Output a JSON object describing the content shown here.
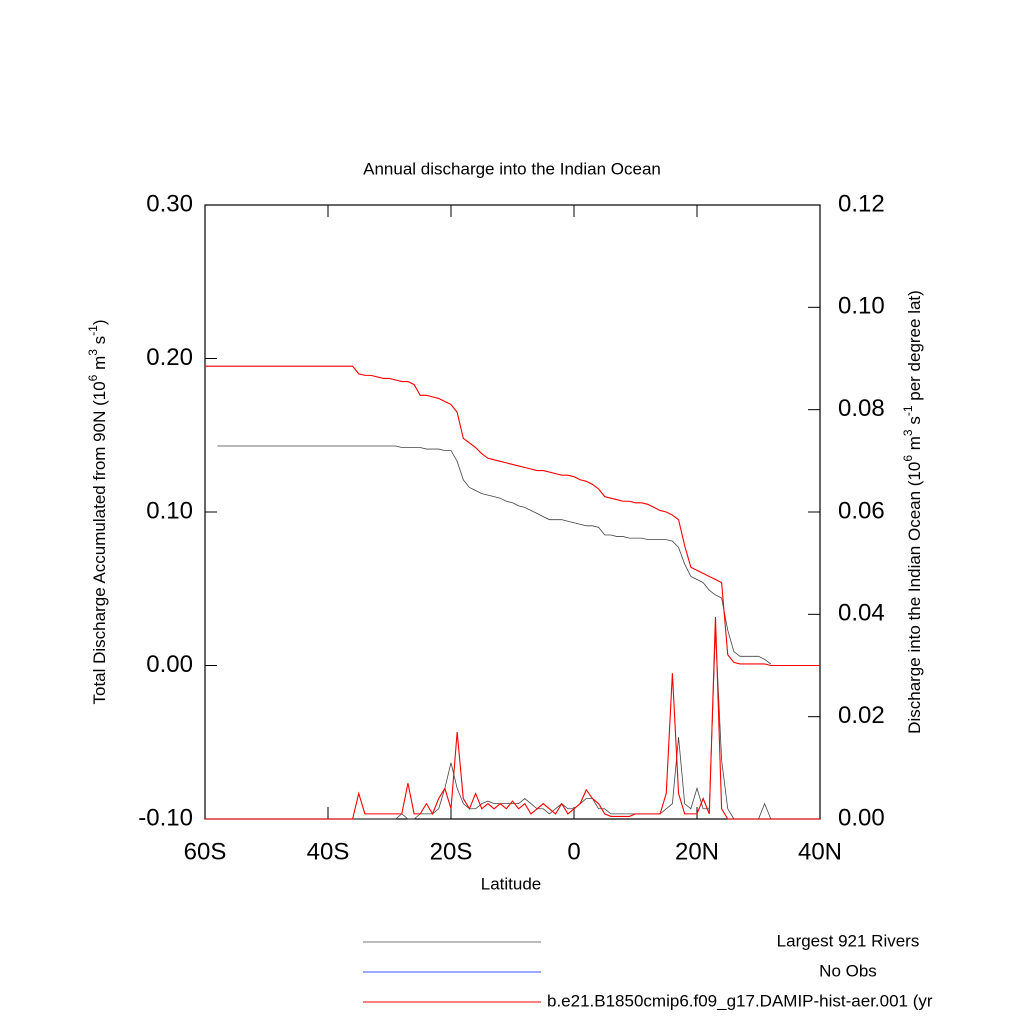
{
  "chart_data": {
    "type": "line",
    "title": "Annual discharge into the Indian Ocean",
    "xlabel": "Latitude",
    "ylabel": [
      "Total Discharge Accumulated from 90N (10",
      "6",
      " m",
      "3",
      " s",
      "-1",
      ")"
    ],
    "y2label": [
      "Discharge into the Indian Ocean (10",
      "6",
      " m",
      "3",
      " s",
      "-1",
      " per degree lat)"
    ],
    "xlim": [
      -60,
      40
    ],
    "xticks": [
      {
        "value": -60,
        "label": "60S"
      },
      {
        "value": -40,
        "label": "40S"
      },
      {
        "value": -20,
        "label": "20S"
      },
      0,
      {
        "value": 20,
        "label": "20N"
      },
      {
        "value": 40,
        "label": "40N"
      }
    ],
    "ylim": [
      -0.1,
      0.3
    ],
    "yticks": [
      {
        "value": -0.1,
        "label": "-0.10"
      },
      {
        "value": 0,
        "label": "0.00"
      },
      {
        "value": 0.1,
        "label": "0.10"
      },
      {
        "value": 0.2,
        "label": "0.20"
      },
      {
        "value": 0.3,
        "label": "0.30"
      }
    ],
    "y2lim": [
      0,
      0.12
    ],
    "y2ticks": [
      {
        "value": 0,
        "label": "0.00"
      },
      {
        "value": 0.02,
        "label": "0.02"
      },
      {
        "value": 0.04,
        "label": "0.04"
      },
      {
        "value": 0.06,
        "label": "0.06"
      },
      {
        "value": 0.08,
        "label": "0.08"
      },
      {
        "value": 0.1,
        "label": "0.10"
      },
      {
        "value": 0.12,
        "label": "0.12"
      }
    ],
    "x": [
      -60,
      -59,
      -58,
      -57,
      -56,
      -55,
      -54,
      -53,
      -52,
      -51,
      -50,
      -49,
      -48,
      -47,
      -46,
      -45,
      -44,
      -43,
      -42,
      -41,
      -40,
      -39,
      -38,
      -37,
      -36,
      -35,
      -34,
      -33,
      -32,
      -31,
      -30,
      -29,
      -28,
      -27,
      -26,
      -25,
      -24,
      -23,
      -22,
      -21,
      -20,
      -19,
      -18,
      -17,
      -16,
      -15,
      -14,
      -13,
      -12,
      -11,
      -10,
      -9,
      -8,
      -7,
      -6,
      -5,
      -4,
      -3,
      -2,
      -1,
      0,
      1,
      2,
      3,
      4,
      5,
      6,
      7,
      8,
      9,
      10,
      11,
      12,
      13,
      14,
      15,
      16,
      17,
      18,
      19,
      20,
      21,
      22,
      23,
      24,
      25,
      26,
      27,
      28,
      29,
      30,
      31,
      32,
      33,
      34,
      35,
      36,
      37,
      38,
      39,
      40
    ],
    "series": [
      {
        "color": "#444444",
        "axis": "y",
        "values": [
          null,
          null,
          0.143,
          0.143,
          0.143,
          0.143,
          0.143,
          0.143,
          0.143,
          0.143,
          0.143,
          0.143,
          0.143,
          0.143,
          0.143,
          0.143,
          0.143,
          0.143,
          0.143,
          0.143,
          0.143,
          0.143,
          0.143,
          0.143,
          0.143,
          0.143,
          0.143,
          0.143,
          0.143,
          0.143,
          0.143,
          0.143,
          0.142,
          0.142,
          0.142,
          0.142,
          0.141,
          0.141,
          0.141,
          0.14,
          0.14,
          0.133,
          0.121,
          0.116,
          0.114,
          0.112,
          0.111,
          0.11,
          0.109,
          0.107,
          0.106,
          0.104,
          0.103,
          0.101,
          0.099,
          0.097,
          0.095,
          0.095,
          0.095,
          0.094,
          0.093,
          0.092,
          0.091,
          0.091,
          0.09,
          0.085,
          0.085,
          0.084,
          0.084,
          0.083,
          0.083,
          0.083,
          0.082,
          0.082,
          0.082,
          0.082,
          0.081,
          0.077,
          0.066,
          0.058,
          0.056,
          0.054,
          0.049,
          0.046,
          0.044,
          0.023,
          0.009,
          0.006,
          0.006,
          0.006,
          0.006,
          0.004,
          0.001,
          null,
          null,
          null,
          null,
          null,
          null,
          null,
          null
        ]
      },
      {
        "color": "#ff0000",
        "axis": "y",
        "values": [
          0.195,
          0.195,
          0.195,
          0.195,
          0.195,
          0.195,
          0.195,
          0.195,
          0.195,
          0.195,
          0.195,
          0.195,
          0.195,
          0.195,
          0.195,
          0.195,
          0.195,
          0.195,
          0.195,
          0.195,
          0.195,
          0.195,
          0.195,
          0.195,
          0.195,
          0.19,
          0.189,
          0.189,
          0.188,
          0.187,
          0.187,
          0.186,
          0.185,
          0.185,
          0.183,
          0.176,
          0.176,
          0.175,
          0.174,
          0.172,
          0.17,
          0.165,
          0.148,
          0.145,
          0.142,
          0.138,
          0.135,
          0.134,
          0.133,
          0.132,
          0.131,
          0.13,
          0.129,
          0.128,
          0.127,
          0.127,
          0.126,
          0.125,
          0.124,
          0.124,
          0.123,
          0.121,
          0.12,
          0.118,
          0.115,
          0.11,
          0.109,
          0.108,
          0.107,
          0.107,
          0.106,
          0.106,
          0.105,
          0.103,
          0.101,
          0.1,
          0.098,
          0.095,
          0.078,
          0.064,
          0.062,
          0.06,
          0.058,
          0.056,
          0.054,
          0.007,
          0.002,
          0.001,
          0.001,
          0.001,
          0.001,
          0.001,
          0,
          0,
          0,
          0,
          0,
          0,
          0,
          0,
          0
        ]
      },
      {
        "color": "#444444",
        "axis": "y2",
        "values": [
          null,
          null,
          0,
          0,
          0,
          0,
          0,
          0,
          0,
          0,
          0,
          0,
          0,
          0,
          0,
          0,
          0,
          0,
          0,
          0,
          0,
          0,
          0,
          0,
          0,
          0,
          0,
          0,
          0,
          0,
          0,
          0,
          0.001,
          0,
          0,
          0.001,
          0.001,
          0.001,
          0.002,
          0.006,
          0.011,
          0.006,
          0.003,
          0.002,
          0.002,
          0.003,
          0.0035,
          0.003,
          0.003,
          0.003,
          0.003,
          0.003,
          0.004,
          0.003,
          0.002,
          0.002,
          0.001,
          0.002,
          0.003,
          0.002,
          0.002,
          0.003,
          0.004,
          0.004,
          0.002,
          0.002,
          0.001,
          0.001,
          0.001,
          0.001,
          0.001,
          0.001,
          0.001,
          0.001,
          0.001,
          0.002,
          0.003,
          0.016,
          0.003,
          0.002,
          0.006,
          0.002,
          0.002,
          0.037,
          0.0115,
          0.002,
          0,
          0,
          0,
          0,
          0,
          0.003,
          0,
          null,
          null,
          null,
          null,
          null,
          null,
          null,
          null
        ]
      },
      {
        "color": "#ff0000",
        "axis": "y2",
        "values": [
          0,
          0,
          0,
          0,
          0,
          0,
          0,
          0,
          0,
          0,
          0,
          0,
          0,
          0,
          0,
          0,
          0,
          0,
          0,
          0,
          0,
          0,
          0,
          0,
          0,
          0.005,
          0.001,
          0.001,
          0.001,
          0.001,
          0.001,
          0.001,
          0.001,
          0.007,
          0.001,
          0.001,
          0.003,
          0.001,
          0.004,
          0.006,
          0.002,
          0.017,
          0.004,
          0.002,
          0.005,
          0.002,
          0.003,
          0.002,
          0.003,
          0.002,
          0.0035,
          0.002,
          0.003,
          0.001,
          0.002,
          0.003,
          0.002,
          0.001,
          0.003,
          0.001,
          0.002,
          0.003,
          0.0057,
          0.004,
          0.003,
          0.001,
          0.0005,
          0.0005,
          0.0005,
          0.0005,
          0.001,
          0.001,
          0.001,
          0.001,
          0.001,
          0.005,
          0.0285,
          0.005,
          0.001,
          0.001,
          0.001,
          0.004,
          0.001,
          0.0395,
          0.002,
          0,
          0,
          0,
          0,
          0,
          0,
          0,
          0,
          0,
          0,
          0,
          0,
          0,
          0,
          0,
          0
        ]
      }
    ],
    "legend": [
      {
        "name": "Largest 921 Rivers",
        "color": "#777777"
      },
      {
        "name": "No Obs",
        "color": "#3355ff"
      },
      {
        "name": "b.e21.B1850cmip6.f09_g17.DAMIP-hist-aer.001 (yr",
        "color": "#ff0000"
      }
    ]
  }
}
